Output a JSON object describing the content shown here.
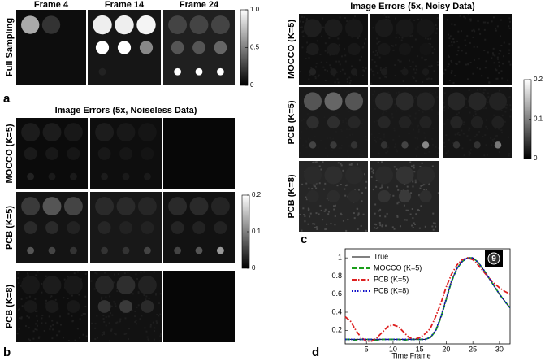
{
  "panel_a": {
    "label": "a",
    "columns": [
      "Frame 4",
      "Frame 14",
      "Frame 24"
    ],
    "row_label": "Full Sampling",
    "colorbar": {
      "lim": [
        0,
        1
      ],
      "ticks": [
        0,
        0.5,
        {
          "value": 1,
          "label": "1.0"
        }
      ]
    }
  },
  "panel_b": {
    "label": "b",
    "title": "Image Errors (5x, Noiseless Data)",
    "rows": [
      "MOCCO (K=5)",
      "PCB (K=5)",
      "PCB (K=8)"
    ],
    "colorbar": {
      "lim": [
        0,
        0.2
      ],
      "ticks": [
        0,
        0.1,
        0.2
      ]
    }
  },
  "panel_c": {
    "label": "c",
    "title": "Image Errors (5x, Noisy Data)",
    "rows": [
      "MOCCO (K=5)",
      "PCB (K=5)",
      "PCB (K=8)"
    ],
    "colorbar": {
      "lim": [
        0,
        0.2
      ],
      "ticks": [
        0,
        0.1,
        0.2
      ]
    }
  },
  "chart_data": {
    "type": "line",
    "label": "d",
    "annotation": "9",
    "xlabel": "Time Frame",
    "x": [
      1,
      2,
      3,
      4,
      5,
      6,
      7,
      8,
      9,
      10,
      11,
      12,
      13,
      14,
      15,
      16,
      17,
      18,
      19,
      20,
      21,
      22,
      23,
      24,
      25,
      26,
      27,
      28,
      29,
      30,
      31,
      32
    ],
    "series": [
      {
        "name": "True",
        "color": "#000000",
        "dash": "solid",
        "values": [
          0.1,
          0.1,
          0.1,
          0.1,
          0.1,
          0.1,
          0.1,
          0.1,
          0.1,
          0.1,
          0.1,
          0.1,
          0.1,
          0.1,
          0.1,
          0.1,
          0.12,
          0.2,
          0.35,
          0.55,
          0.75,
          0.88,
          0.96,
          1.0,
          1.0,
          0.95,
          0.87,
          0.78,
          0.69,
          0.6,
          0.52,
          0.45
        ]
      },
      {
        "name": "MOCCO (K=5)",
        "color": "#1a9e1a",
        "dash": "dashed",
        "values": [
          0.1,
          0.1,
          0.09,
          0.1,
          0.1,
          0.1,
          0.09,
          0.1,
          0.1,
          0.1,
          0.1,
          0.09,
          0.1,
          0.1,
          0.1,
          0.1,
          0.12,
          0.19,
          0.34,
          0.54,
          0.74,
          0.88,
          0.96,
          1.0,
          1.0,
          0.95,
          0.87,
          0.78,
          0.69,
          0.6,
          0.52,
          0.45
        ]
      },
      {
        "name": "PCB (K=5)",
        "color": "#dd1f1f",
        "dash": "dashdot",
        "values": [
          0.35,
          0.3,
          0.2,
          0.12,
          0.08,
          0.08,
          0.12,
          0.18,
          0.24,
          0.26,
          0.24,
          0.18,
          0.12,
          0.1,
          0.12,
          0.16,
          0.22,
          0.35,
          0.5,
          0.68,
          0.82,
          0.92,
          0.98,
          1.0,
          0.98,
          0.92,
          0.85,
          0.78,
          0.72,
          0.67,
          0.63,
          0.6
        ]
      },
      {
        "name": "PCB (K=8)",
        "color": "#1010c8",
        "dash": "dotted",
        "values": [
          0.1,
          0.1,
          0.1,
          0.1,
          0.1,
          0.1,
          0.1,
          0.1,
          0.1,
          0.1,
          0.1,
          0.1,
          0.1,
          0.1,
          0.1,
          0.1,
          0.12,
          0.2,
          0.35,
          0.55,
          0.75,
          0.88,
          0.96,
          1.0,
          1.0,
          0.95,
          0.87,
          0.78,
          0.69,
          0.6,
          0.52,
          0.45
        ]
      }
    ],
    "xlim": [
      1,
      32
    ],
    "ylim": [
      0.05,
      1.1
    ],
    "xticks": [
      5,
      10,
      15,
      20,
      25,
      30
    ],
    "yticks": [
      0.2,
      0.4,
      0.6,
      0.8,
      1
    ]
  }
}
